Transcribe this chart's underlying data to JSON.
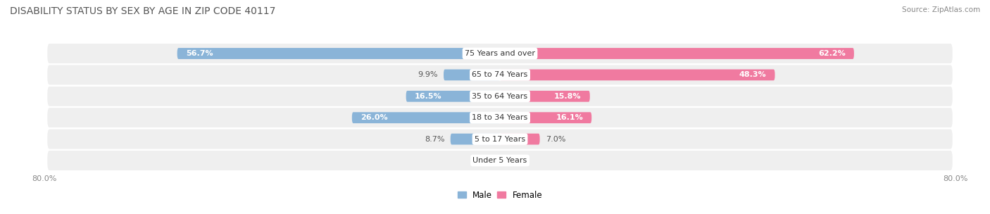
{
  "title": "DISABILITY STATUS BY SEX BY AGE IN ZIP CODE 40117",
  "source": "Source: ZipAtlas.com",
  "categories": [
    "Under 5 Years",
    "5 to 17 Years",
    "18 to 34 Years",
    "35 to 64 Years",
    "65 to 74 Years",
    "75 Years and over"
  ],
  "male_values": [
    0.0,
    8.7,
    26.0,
    16.5,
    9.9,
    56.7
  ],
  "female_values": [
    0.0,
    7.0,
    16.1,
    15.8,
    48.3,
    62.2
  ],
  "male_color": "#8ab4d8",
  "female_color": "#f07aa0",
  "row_bg_color": "#efefef",
  "axis_max": 80.0,
  "bar_height": 0.52,
  "figsize": [
    14.06,
    3.04
  ],
  "dpi": 100,
  "title_fontsize": 10,
  "label_fontsize": 8,
  "value_fontsize": 8,
  "category_fontsize": 8,
  "legend_fontsize": 8.5,
  "source_fontsize": 7.5
}
